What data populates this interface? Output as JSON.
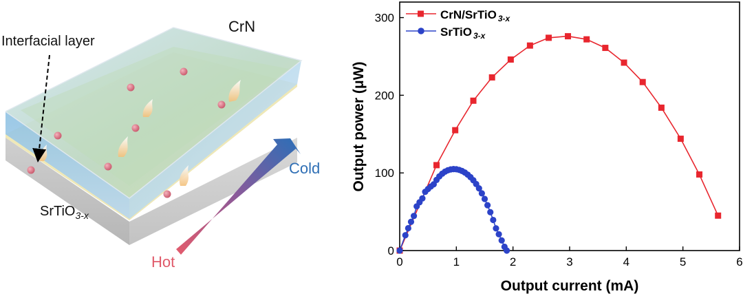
{
  "schematic": {
    "top_layer_label": "CrN",
    "interface_label": "Interfacial layer",
    "substrate_label": "SrTiO",
    "substrate_sub": "3-x",
    "hot_label": "Hot",
    "cold_label": "Cold"
  },
  "colors": {
    "crn_series": "#e8262e",
    "sto_series": "#2c43c8",
    "hot": "#e05a6a",
    "cold": "#2f6fb5"
  },
  "chart_data": {
    "type": "line",
    "xlabel": "Output current (mA)",
    "ylabel": "Output power (μW)",
    "xlim": [
      0,
      6
    ],
    "ylim": [
      0,
      320
    ],
    "xticks": [
      "0",
      "1",
      "2",
      "3",
      "4",
      "5",
      "6"
    ],
    "yticks": [
      "0",
      "100",
      "200",
      "300"
    ],
    "xtick_values": [
      0,
      1,
      2,
      3,
      4,
      5,
      6
    ],
    "ytick_values": [
      0,
      100,
      200,
      300
    ],
    "grid": false,
    "legend_position": "top-left",
    "series": [
      {
        "name": "CrN/SrTiO",
        "name_sub": "3-x",
        "marker": "square",
        "color": "#e8262e",
        "x": [
          0.0,
          0.65,
          0.98,
          1.3,
          1.63,
          1.96,
          2.3,
          2.63,
          2.97,
          3.3,
          3.63,
          3.96,
          4.29,
          4.62,
          4.96,
          5.29,
          5.62
        ],
        "y": [
          0,
          110,
          155,
          193,
          223,
          246,
          264,
          274,
          276,
          272,
          261,
          242,
          217,
          184,
          144,
          98,
          45
        ]
      },
      {
        "name": "SrTiO",
        "name_sub": "3-x",
        "marker": "circle",
        "color": "#2c43c8",
        "x": [
          0.0,
          0.1,
          0.15,
          0.2,
          0.25,
          0.3,
          0.35,
          0.4,
          0.45,
          0.5,
          0.55,
          0.6,
          0.65,
          0.7,
          0.75,
          0.8,
          0.85,
          0.9,
          0.95,
          1.0,
          1.05,
          1.1,
          1.15,
          1.2,
          1.25,
          1.3,
          1.35,
          1.4,
          1.45,
          1.5,
          1.55,
          1.6,
          1.65,
          1.7,
          1.75,
          1.8,
          1.85,
          1.89
        ],
        "y": [
          0,
          19.7,
          28.8,
          37.0,
          44.6,
          56.9,
          62.2,
          67.2,
          75.7,
          79.3,
          82.5,
          85.3,
          91.0,
          95.5,
          99.0,
          101.6,
          103.4,
          104.5,
          104.9,
          104.7,
          103.9,
          102.5,
          100.5,
          97.8,
          94.5,
          90.5,
          85.7,
          80.1,
          73.7,
          66.5,
          58.4,
          49.4,
          39.4,
          28.6,
          21.0,
          13.1,
          4.9,
          0
        ]
      }
    ]
  }
}
